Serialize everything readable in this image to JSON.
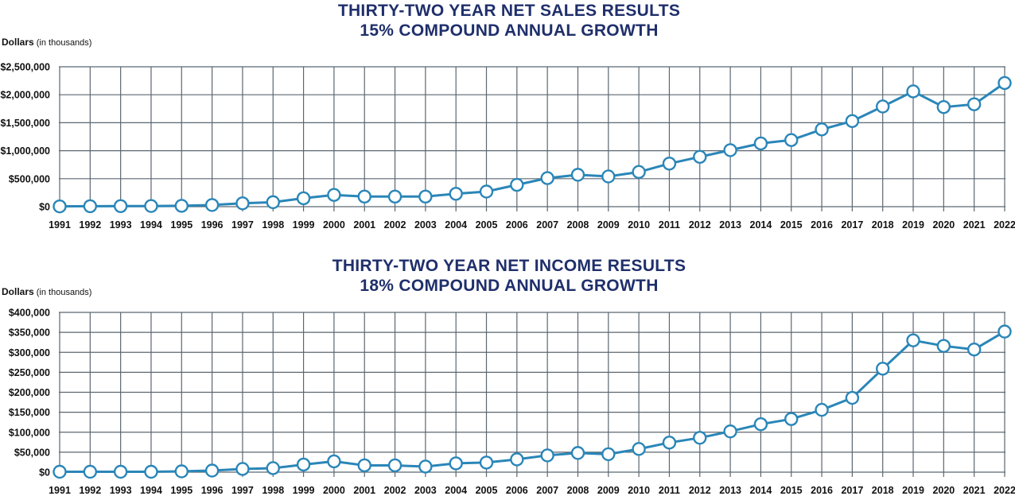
{
  "chart_data": [
    {
      "type": "line",
      "title": "THIRTY-TWO YEAR NET SALES RESULTS",
      "subtitle": "15% COMPOUND ANNUAL GROWTH",
      "ylabel_main": "Dollars",
      "ylabel_note": "(in thousands)",
      "ylim": [
        0,
        2500000
      ],
      "ytick_values": [
        0,
        500000,
        1000000,
        1500000,
        2000000,
        2500000
      ],
      "ytick_labels": [
        "$0",
        "$500,000",
        "$1,000,000",
        "$1,500,000",
        "$2,000,000",
        "$2,500,000"
      ],
      "grid": true,
      "line_color": "#2a86b8",
      "x": [
        "1991",
        "1992",
        "1993",
        "1994",
        "1995",
        "1996",
        "1997",
        "1998",
        "1999",
        "2000",
        "2001",
        "2002",
        "2003",
        "2004",
        "2005",
        "2006",
        "2007",
        "2008",
        "2009",
        "2010",
        "2011",
        "2012",
        "2013",
        "2014",
        "2015",
        "2016",
        "2017",
        "2018",
        "2019",
        "2020",
        "2021",
        "2022"
      ],
      "values": [
        5000,
        8000,
        10000,
        12000,
        15000,
        30000,
        60000,
        80000,
        150000,
        210000,
        180000,
        180000,
        180000,
        230000,
        270000,
        390000,
        510000,
        570000,
        540000,
        620000,
        770000,
        890000,
        1010000,
        1130000,
        1190000,
        1380000,
        1530000,
        1790000,
        2060000,
        1780000,
        1830000,
        2210000
      ]
    },
    {
      "type": "line",
      "title": "THIRTY-TWO YEAR NET INCOME RESULTS",
      "subtitle": "18% COMPOUND ANNUAL GROWTH",
      "ylabel_main": "Dollars",
      "ylabel_note": "(in thousands)",
      "ylim": [
        0,
        400000
      ],
      "ytick_values": [
        0,
        50000,
        100000,
        150000,
        200000,
        250000,
        300000,
        350000,
        400000
      ],
      "ytick_labels": [
        "$0",
        "$50,000",
        "$100,000",
        "$150,000",
        "$200,000",
        "$250,000",
        "$300,000",
        "$350,000",
        "$400,000"
      ],
      "grid": true,
      "line_color": "#2a86b8",
      "x": [
        "1991",
        "1992",
        "1993",
        "1994",
        "1995",
        "1996",
        "1997",
        "1998",
        "1999",
        "2000",
        "2001",
        "2002",
        "2003",
        "2004",
        "2005",
        "2006",
        "2007",
        "2008",
        "2009",
        "2010",
        "2011",
        "2012",
        "2013",
        "2014",
        "2015",
        "2016",
        "2017",
        "2018",
        "2019",
        "2020",
        "2021",
        "2022"
      ],
      "values": [
        1000,
        1000,
        1000,
        1000,
        2000,
        4000,
        8000,
        10000,
        19000,
        27000,
        17000,
        17000,
        14000,
        22000,
        24000,
        32000,
        42000,
        48000,
        45000,
        58000,
        74000,
        86000,
        102000,
        120000,
        133000,
        156000,
        186000,
        259000,
        330000,
        316000,
        307000,
        352000
      ]
    }
  ]
}
